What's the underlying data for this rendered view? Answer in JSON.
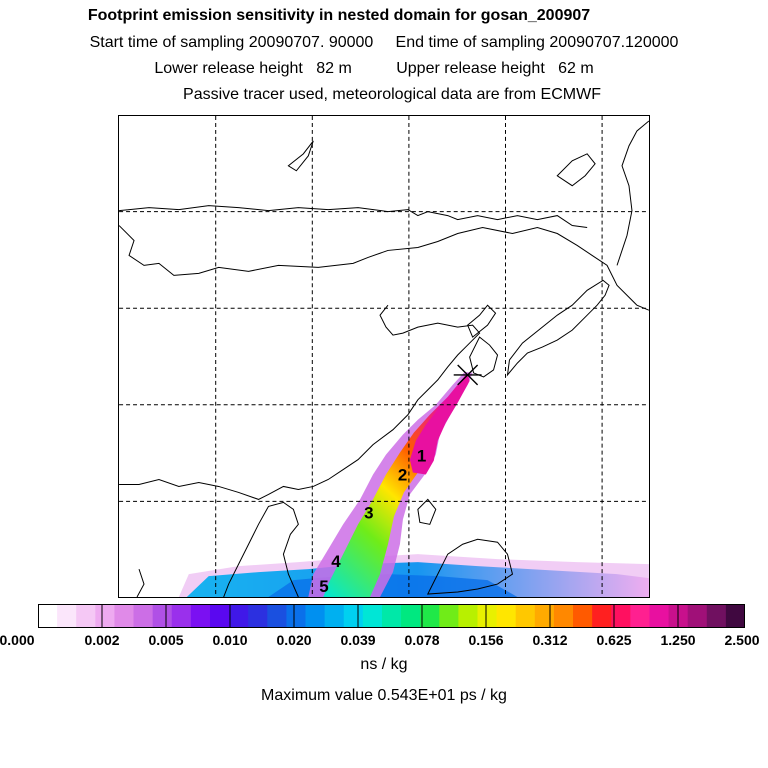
{
  "header": {
    "title": "Footprint emission sensitivity in nested domain for gosan_200907",
    "sampling": "Start time of sampling 20090707. 90000     End time of sampling 20090707.120000",
    "release": "Lower release height   82 m          Upper release height   62 m",
    "note": "Passive tracer used, meteorological data are from ECMWF"
  },
  "map": {
    "segment_labels": [
      "1",
      "2",
      "3",
      "4",
      "5"
    ],
    "receptor_marker": "x-marker",
    "gridlines": "dashed"
  },
  "colorbar": {
    "unit": "ns / kg",
    "tick_labels": [
      "0.000",
      "0.002",
      "0.005",
      "0.010",
      "0.020",
      "0.039",
      "0.078",
      "0.156",
      "0.312",
      "0.625",
      "1.250",
      "2.500"
    ],
    "colors": [
      "#ffffff",
      "#fbe6fb",
      "#f5c8f5",
      "#eeaaf0",
      "#e08ae8",
      "#cc6ee6",
      "#b050e6",
      "#9a30ec",
      "#7b10f2",
      "#5a08f0",
      "#4018e8",
      "#2c30e0",
      "#1a50e0",
      "#0a70ea",
      "#0090f0",
      "#00b0f0",
      "#00d0f0",
      "#00e6d6",
      "#00e8a8",
      "#00e880",
      "#20e848",
      "#70ec18",
      "#b8f000",
      "#e8f000",
      "#ffe600",
      "#ffc800",
      "#ffaa00",
      "#ff8800",
      "#ff5a00",
      "#ff2020",
      "#ff1060",
      "#ff2090",
      "#e810a0",
      "#c8108c",
      "#a01078",
      "#701060",
      "#400840"
    ]
  },
  "footer": {
    "maximum": "Maximum value  0.543E+01 ps / kg"
  }
}
